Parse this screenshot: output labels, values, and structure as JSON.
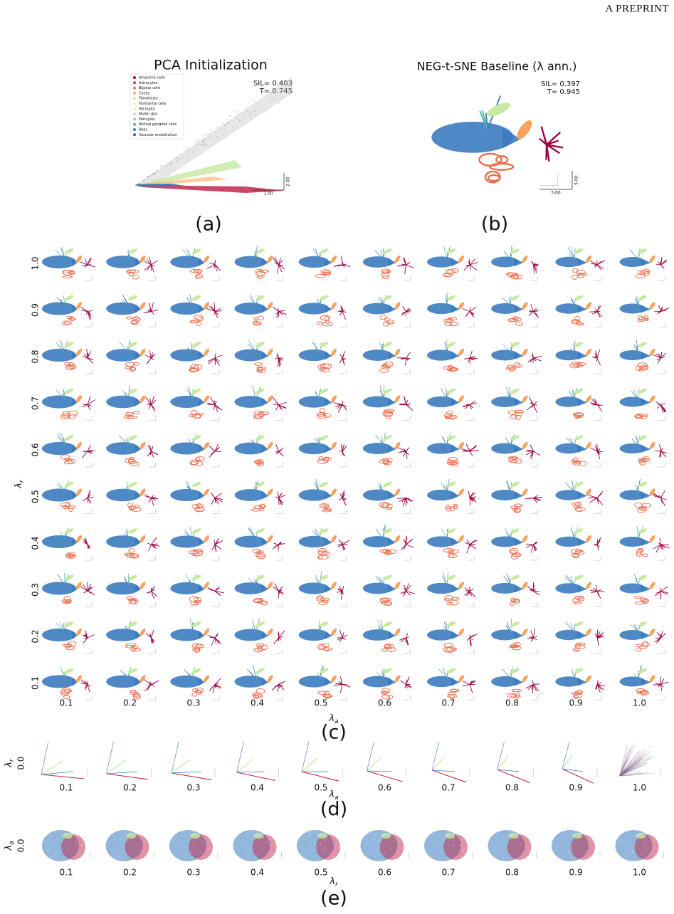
{
  "header": "A PREPRINT",
  "panel_a": {
    "title": "PCA Initialization",
    "legend": [
      {
        "name": "Amacrine cells",
        "color": "#9e0142"
      },
      {
        "name": "Astrocytes",
        "color": "#d13c4b"
      },
      {
        "name": "Bipolar cells",
        "color": "#f0704a"
      },
      {
        "name": "Cones",
        "color": "#fcac63"
      },
      {
        "name": "Fibroblasts",
        "color": "#fedd8d"
      },
      {
        "name": "Horizontal cells",
        "color": "#fbf8b0"
      },
      {
        "name": "Microglia",
        "color": "#f0f9a8"
      },
      {
        "name": "Muller glia",
        "color": "#c7e9a0"
      },
      {
        "name": "Pericytes",
        "color": "#8ad0a4"
      },
      {
        "name": "Retinal ganglion cells",
        "color": "#54aead"
      },
      {
        "name": "Rods",
        "color": "#3b7bbf"
      },
      {
        "name": "Vascular endothelium",
        "color": "#5e4fa2"
      }
    ],
    "sil": "SIL= 0.403",
    "t": "T= 0.745",
    "scale_x": "1.00",
    "scale_y": "2.00",
    "caption": "(a)"
  },
  "panel_b": {
    "title": "NEG-t-SNE Baseline (λ ann.)",
    "sil": "SIL= 0.397",
    "t": "T= 0.945",
    "scale_x": "5.00",
    "scale_y": "5.00",
    "caption": "(b)"
  },
  "panel_c": {
    "rows": [
      "1.0",
      "0.9",
      "0.8",
      "0.7",
      "0.6",
      "0.5",
      "0.4",
      "0.3",
      "0.2",
      "0.1"
    ],
    "columns": [
      "0.1",
      "0.2",
      "0.3",
      "0.4",
      "0.5",
      "0.6",
      "0.7",
      "0.8",
      "0.9",
      "1.0"
    ],
    "x_axis": {
      "base": "λ",
      "sub": "a"
    },
    "y_axis": {
      "base": "λ",
      "sub": "r"
    },
    "caption": "(c)"
  },
  "panel_d": {
    "row": "0.0",
    "columns": [
      "0.1",
      "0.2",
      "0.3",
      "0.4",
      "0.5",
      "0.6",
      "0.7",
      "0.8",
      "0.9",
      "1.0"
    ],
    "x_axis": {
      "base": "λ",
      "sub": "a"
    },
    "y_axis": {
      "base": "λ",
      "sub": "r"
    },
    "caption": "(d)"
  },
  "panel_e": {
    "row": "0.0",
    "columns": [
      "0.1",
      "0.2",
      "0.3",
      "0.4",
      "0.5",
      "0.6",
      "0.7",
      "0.8",
      "0.9",
      "1.0"
    ],
    "x_axis": {
      "base": "λ",
      "sub": "r"
    },
    "y_axis": {
      "base": "λ",
      "sub": "a"
    },
    "caption": "(e)"
  }
}
